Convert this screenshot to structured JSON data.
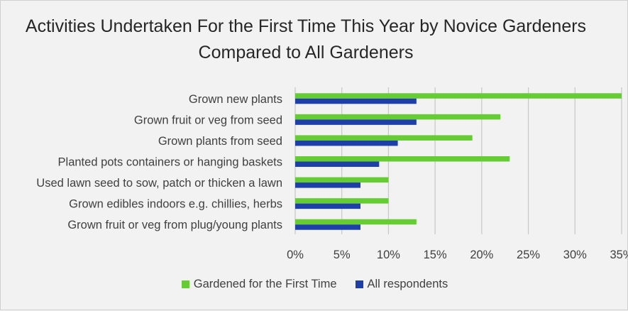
{
  "colors": {
    "series_1": "#66cc33",
    "series_2": "#1f3fa8",
    "grid": "#c8c8c8",
    "text": "#404040"
  },
  "chart_data": {
    "type": "bar",
    "orientation": "horizontal",
    "title_lines": [
      "Activities Undertaken For the First Time This Year by Novice Gardeners",
      "Compared to All Gardeners"
    ],
    "categories": [
      "Grown new plants",
      "Grown fruit or veg from seed",
      "Grown plants from seed",
      "Planted pots containers or hanging baskets",
      "Used lawn seed to sow, patch or thicken a lawn",
      "Grown edibles indoors e.g. chillies, herbs",
      "Grown fruit or veg from plug/young plants"
    ],
    "series": [
      {
        "name": "Gardened for the First Time",
        "values": [
          35,
          22,
          19,
          23,
          10,
          10,
          13
        ]
      },
      {
        "name": "All respondents",
        "values": [
          13,
          13,
          11,
          9,
          7,
          7,
          7
        ]
      }
    ],
    "xlim": [
      0,
      35
    ],
    "xticks": [
      0,
      5,
      10,
      15,
      20,
      25,
      30,
      35
    ],
    "xtick_labels": [
      "0%",
      "5%",
      "10%",
      "15%",
      "20%",
      "25%",
      "30%",
      "35%"
    ],
    "grid": true,
    "legend_position": "bottom"
  }
}
